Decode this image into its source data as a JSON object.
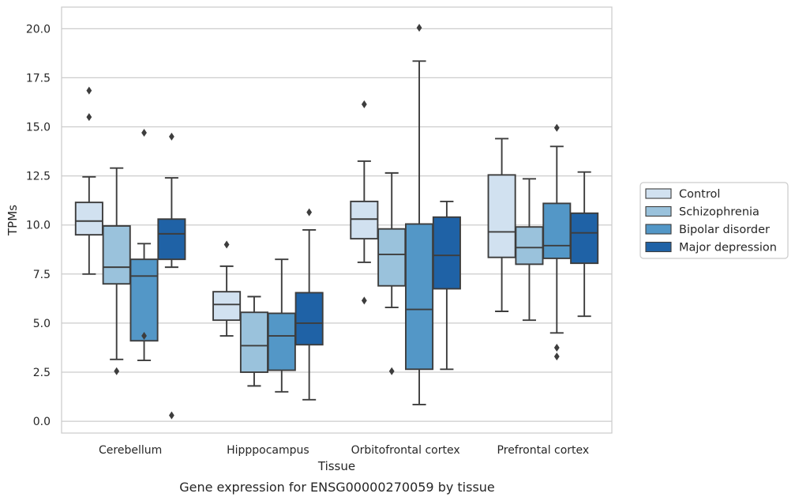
{
  "chart_data": {
    "type": "box",
    "caption": "Gene expression for ENSG00000270059 by tissue",
    "xlabel": "Tissue",
    "ylabel": "TPMs",
    "ylim": [
      -0.6,
      21.1
    ],
    "yticks": [
      0.0,
      2.5,
      5.0,
      7.5,
      10.0,
      12.5,
      15.0,
      17.5,
      20.0
    ],
    "ytick_labels": [
      "0.0",
      "2.5",
      "5.0",
      "7.5",
      "10.0",
      "12.5",
      "15.0",
      "17.5",
      "20.0"
    ],
    "grid": "horizontal",
    "legend_position": "right",
    "categories": [
      "Cerebellum",
      "Hipppocampus",
      "Orbitofrontal cortex",
      "Prefrontal cortex"
    ],
    "series": [
      {
        "name": "Control",
        "color": "#d1e1f0",
        "boxes": [
          {
            "whislo": 7.5,
            "q1": 9.5,
            "med": 10.2,
            "q3": 11.15,
            "whishi": 12.45,
            "fliers": [
              16.85,
              15.5
            ]
          },
          {
            "whislo": 4.35,
            "q1": 5.15,
            "med": 5.95,
            "q3": 6.6,
            "whishi": 7.9,
            "fliers": [
              9.0
            ]
          },
          {
            "whislo": 8.1,
            "q1": 9.3,
            "med": 10.3,
            "q3": 11.2,
            "whishi": 13.25,
            "fliers": [
              16.15,
              6.15
            ]
          },
          {
            "whislo": 5.6,
            "q1": 8.35,
            "med": 9.65,
            "q3": 12.55,
            "whishi": 14.4,
            "fliers": []
          }
        ]
      },
      {
        "name": "Schizophrenia",
        "color": "#9ac2dc",
        "boxes": [
          {
            "whislo": 3.15,
            "q1": 7.0,
            "med": 7.85,
            "q3": 9.95,
            "whishi": 12.9,
            "fliers": [
              2.55
            ]
          },
          {
            "whislo": 1.8,
            "q1": 2.5,
            "med": 3.85,
            "q3": 5.55,
            "whishi": 6.35,
            "fliers": []
          },
          {
            "whislo": 5.8,
            "q1": 6.9,
            "med": 8.5,
            "q3": 9.8,
            "whishi": 12.65,
            "fliers": [
              2.55
            ]
          },
          {
            "whislo": 5.15,
            "q1": 8.0,
            "med": 8.85,
            "q3": 9.9,
            "whishi": 12.35,
            "fliers": []
          }
        ]
      },
      {
        "name": "Bipolar disorder",
        "color": "#5397c7",
        "boxes": [
          {
            "whislo": 3.1,
            "q1": 4.1,
            "med": 7.4,
            "q3": 8.25,
            "whishi": 9.05,
            "fliers": [
              14.7,
              4.35
            ]
          },
          {
            "whislo": 1.5,
            "q1": 2.6,
            "med": 4.35,
            "q3": 5.5,
            "whishi": 8.25,
            "fliers": []
          },
          {
            "whislo": 0.85,
            "q1": 2.65,
            "med": 5.7,
            "q3": 10.05,
            "whishi": 18.35,
            "fliers": [
              20.05
            ]
          },
          {
            "whislo": 4.5,
            "q1": 8.3,
            "med": 8.95,
            "q3": 11.1,
            "whishi": 14.0,
            "fliers": [
              14.95,
              3.75,
              3.3
            ]
          }
        ]
      },
      {
        "name": "Major depression",
        "color": "#1f62a6",
        "boxes": [
          {
            "whislo": 7.85,
            "q1": 8.25,
            "med": 9.55,
            "q3": 10.3,
            "whishi": 12.4,
            "fliers": [
              14.5,
              0.3
            ]
          },
          {
            "whislo": 1.1,
            "q1": 3.9,
            "med": 5.0,
            "q3": 6.55,
            "whishi": 9.75,
            "fliers": [
              10.65
            ]
          },
          {
            "whislo": 2.65,
            "q1": 6.75,
            "med": 8.45,
            "q3": 10.4,
            "whishi": 11.2,
            "fliers": []
          },
          {
            "whislo": 5.35,
            "q1": 8.05,
            "med": 9.6,
            "q3": 10.6,
            "whishi": 12.7,
            "fliers": []
          }
        ]
      }
    ]
  }
}
